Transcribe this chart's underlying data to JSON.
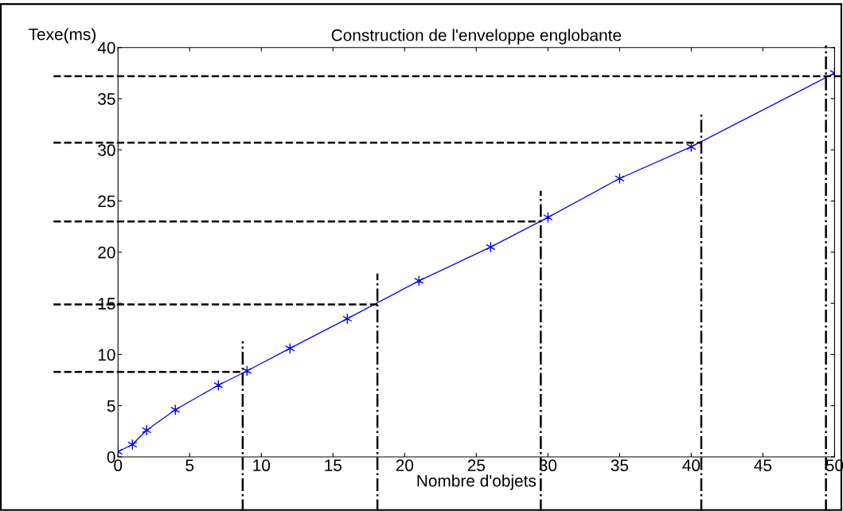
{
  "chart_data": {
    "type": "line",
    "title": "Construction de l'enveloppe englobante",
    "xlabel": "Nombre d'objets",
    "ylabel": "Texe(ms)",
    "x": [
      0,
      1,
      2,
      4,
      7,
      9,
      12,
      16,
      21,
      26,
      30,
      35,
      40,
      50
    ],
    "series": [
      {
        "color": "#0000ff",
        "values": [
          0.5,
          1.2,
          2.6,
          4.6,
          7.0,
          8.4,
          10.6,
          13.5,
          17.2,
          20.5,
          23.4,
          27.2,
          30.3,
          37.5
        ]
      }
    ],
    "marker": "cross",
    "line_style": "solid",
    "xlim": [
      0,
      50
    ],
    "xticks": [
      0,
      5,
      10,
      15,
      20,
      25,
      30,
      35,
      40,
      45,
      50
    ],
    "ylim": [
      0,
      40
    ],
    "yticks": [
      0,
      5,
      10,
      15,
      20,
      25,
      30,
      35,
      40
    ],
    "grid": false,
    "legend": false,
    "ref_lines": [
      {
        "axis": "y",
        "value": 8.3,
        "line_style": "dashed",
        "color": "#000000"
      },
      {
        "axis": "y",
        "value": 14.9,
        "line_style": "dashed",
        "color": "#000000"
      },
      {
        "axis": "y",
        "value": 23.0,
        "line_style": "dashed",
        "color": "#000000"
      },
      {
        "axis": "y",
        "value": 30.7,
        "line_style": "dashed",
        "color": "#000000"
      },
      {
        "axis": "y",
        "value": 37.2,
        "line_style": "dashed",
        "color": "#000000"
      },
      {
        "axis": "x",
        "value": 8.7,
        "line_style": "dashdot",
        "color": "#000000"
      },
      {
        "axis": "x",
        "value": 18.1,
        "line_style": "dashdot",
        "color": "#000000"
      },
      {
        "axis": "x",
        "value": 29.5,
        "line_style": "dashdot",
        "color": "#000000"
      },
      {
        "axis": "x",
        "value": 40.7,
        "line_style": "dashdot",
        "color": "#000000"
      },
      {
        "axis": "x",
        "value": 49.4,
        "line_style": "dashdot",
        "color": "#000000"
      }
    ]
  }
}
